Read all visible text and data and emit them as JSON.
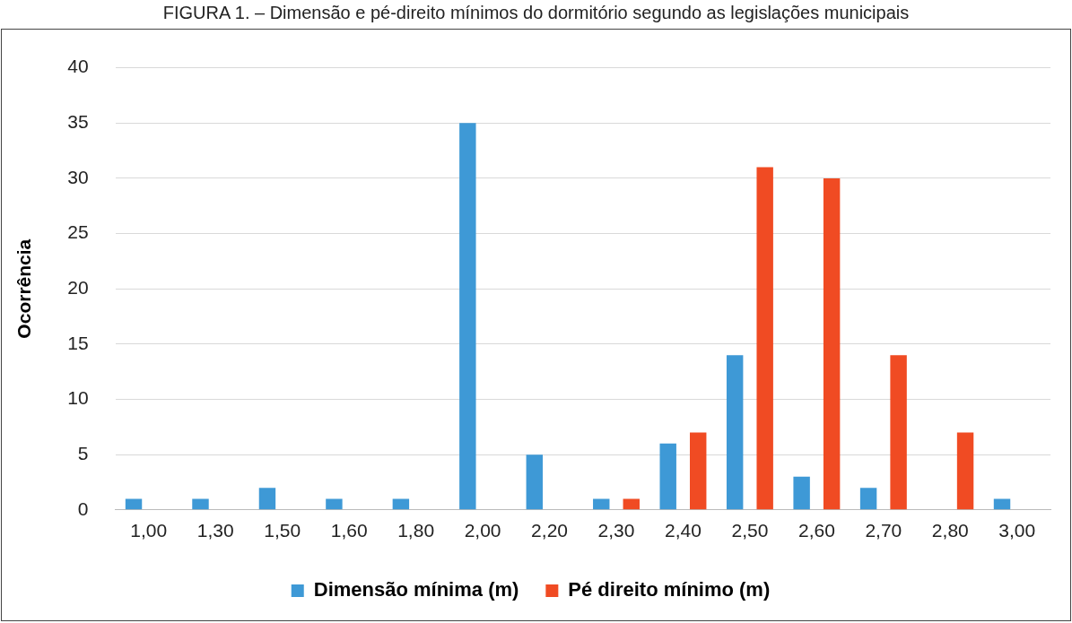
{
  "chart_data": {
    "type": "bar",
    "title": "FIGURA 1. – Dimensão e pé-direito mínimos do dormitório segundo as legislações municipais",
    "ylabel": "Ocorrência",
    "categories": [
      "1,00",
      "1,30",
      "1,50",
      "1,60",
      "1,80",
      "2,00",
      "2,20",
      "2,30",
      "2,40",
      "2,50",
      "2,60",
      "2,70",
      "2,80",
      "3,00"
    ],
    "series": [
      {
        "name": "Dimensão mínima (m)",
        "color": "#3e99d6",
        "values": [
          1,
          1,
          2,
          1,
          1,
          35,
          5,
          1,
          6,
          14,
          3,
          2,
          0,
          1
        ]
      },
      {
        "name": "Pé direito mínimo (m)",
        "color": "#f04b23",
        "values": [
          0,
          0,
          0,
          0,
          0,
          0,
          0,
          1,
          7,
          31,
          30,
          14,
          7,
          0
        ]
      }
    ],
    "ylim": [
      0,
      40
    ],
    "yticks": [
      0,
      5,
      10,
      15,
      20,
      25,
      30,
      35,
      40
    ],
    "grid": "y",
    "legend": "bottom"
  }
}
